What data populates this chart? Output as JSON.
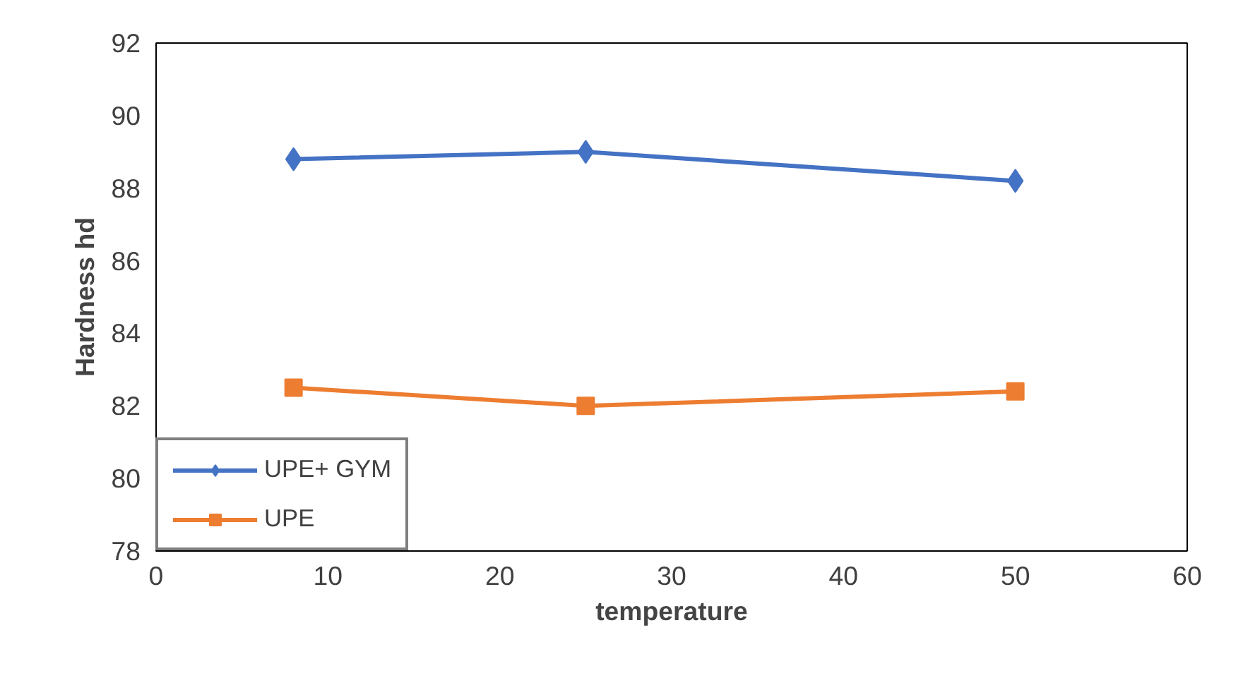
{
  "chart_data": {
    "type": "line",
    "xlabel": "temperature",
    "ylabel": "Hardness hd",
    "x": [
      8,
      25,
      50
    ],
    "series": [
      {
        "name": "UPE+ GYM",
        "color": "#4472c4",
        "values": [
          88.8,
          89.0,
          88.2
        ],
        "marker": "diamond"
      },
      {
        "name": "UPE",
        "color": "#ed7d31",
        "values": [
          82.5,
          82.0,
          82.4
        ],
        "marker": "square"
      }
    ],
    "xlim": [
      0,
      60
    ],
    "xticks": [
      0,
      10,
      20,
      30,
      40,
      50,
      60
    ],
    "ylim": [
      78,
      92
    ],
    "yticks": [
      78,
      80,
      82,
      84,
      86,
      88,
      90,
      92
    ],
    "grid": false,
    "legend": "bottom left",
    "line_style": "solid"
  }
}
